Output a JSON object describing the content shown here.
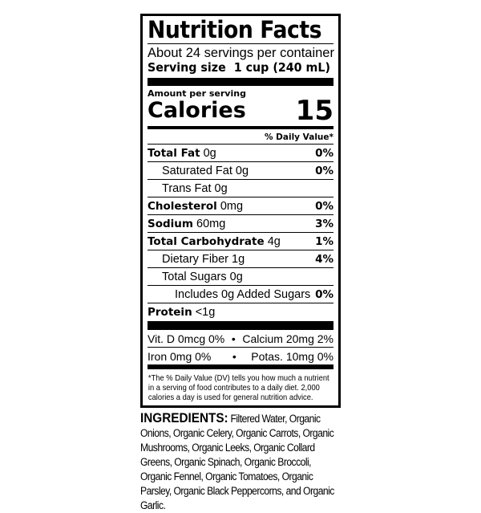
{
  "label": {
    "title": "Nutrition Facts",
    "servings_per_container": "About 24 servings per container",
    "serving_size_label": "Serving size",
    "serving_size_value": "1 cup (240 mL)",
    "amount_per_serving": "Amount per serving",
    "calories_label": "Calories",
    "calories_value": "15",
    "daily_value_header": "% Daily Value*",
    "nutrients": [
      {
        "name": "Total Fat",
        "amount": "0g",
        "dv": "0%"
      },
      {
        "name": "Saturated Fat",
        "amount": "0g",
        "dv": "0%"
      },
      {
        "name": "Trans Fat",
        "amount": "0g",
        "dv": ""
      },
      {
        "name": "Cholesterol",
        "amount": "0mg",
        "dv": "0%"
      },
      {
        "name": "Sodium",
        "amount": "60mg",
        "dv": "3%"
      },
      {
        "name": "Total Carbohydrate",
        "amount": "4g",
        "dv": "1%"
      },
      {
        "name": "Dietary Fiber",
        "amount": "1g",
        "dv": "4%"
      },
      {
        "name": "Total Sugars",
        "amount": "0g",
        "dv": ""
      },
      {
        "name": "Includes 0g Added Sugars",
        "amount": "",
        "dv": "0%"
      },
      {
        "name": "Protein",
        "amount": "<1g",
        "dv": ""
      }
    ],
    "vitamins": [
      {
        "left": "Vit. D 0mcg 0%",
        "right": "Calcium 20mg 2%"
      },
      {
        "left": "Iron 0mg 0%",
        "right": "Potas. 10mg 0%"
      }
    ],
    "bullet": "•",
    "footnote": "*The % Daily Value (DV) tells you how much a nutrient in a serving of food contributes to a daily diet. 2,000 calories a day is used for general nutrition advice."
  },
  "ingredients": {
    "heading": "INGREDIENTS:",
    "text": "Filtered Water, Organic Onions, Organic Celery, Organic Carrots, Organic Mushrooms, Organic Leeks, Organic Collard Greens, Organic Spinach, Organic Broccoli, Organic Fennel, Organic Tomatoes, Organic Parsley, Organic Black Peppercorns, and Organic Garlic."
  }
}
